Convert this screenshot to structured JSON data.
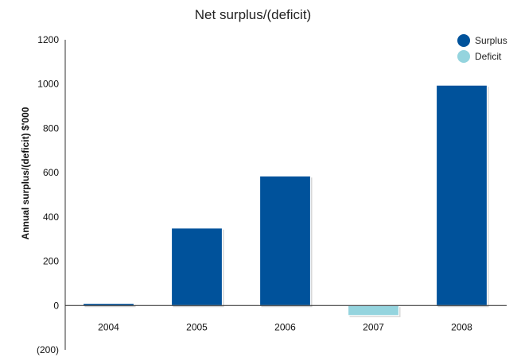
{
  "chart_data": {
    "type": "bar",
    "title": "Net surplus/(deficit)",
    "xlabel": "",
    "ylabel": "Annual surplus/(deficit) $'000",
    "categories": [
      "2004",
      "2005",
      "2006",
      "2007",
      "2008"
    ],
    "series": [
      {
        "name": "Surplus",
        "color": "#00529b",
        "values": [
          10,
          350,
          585,
          null,
          995
        ]
      },
      {
        "name": "Deficit",
        "color": "#94d4de",
        "values": [
          null,
          null,
          null,
          -45,
          null
        ]
      }
    ],
    "ylim": [
      -200,
      1200
    ],
    "yticks": [
      "(200)",
      "0",
      "200",
      "400",
      "600",
      "800",
      "1000",
      "1200"
    ],
    "ytick_values": [
      -200,
      0,
      200,
      400,
      600,
      800,
      1000,
      1200
    ],
    "legend_position": "top-right",
    "grid": false,
    "axis_color": "#555555"
  }
}
